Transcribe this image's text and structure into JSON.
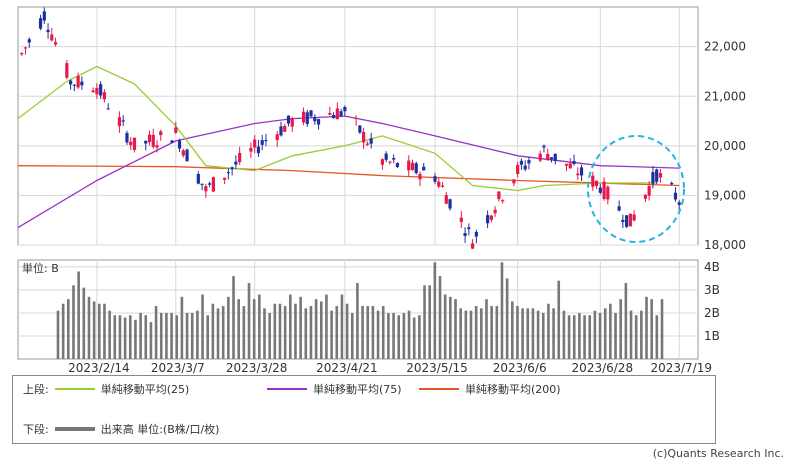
{
  "colors": {
    "up": "#e8194a",
    "down": "#1e2fa0",
    "ma25": "#99cc33",
    "ma75": "#9933cc",
    "ma200": "#e8552a",
    "volume": "#777777",
    "grid": "#d8d8d8",
    "highlight": "#27b4e0"
  },
  "price_axis": {
    "ticks": [
      "22,000",
      "21,000",
      "20,000",
      "19,000",
      "18,000"
    ]
  },
  "volume_axis": {
    "unit_label": "単位: B",
    "ticks": [
      "4B",
      "3B",
      "2B",
      "1B"
    ]
  },
  "x_labels": [
    "2023/2/14",
    "2023/3/7",
    "2023/3/28",
    "2023/4/21",
    "2023/5/15",
    "2023/6/6",
    "2023/6/28",
    "2023/7/19"
  ],
  "legend": {
    "upper_label": "上段:",
    "ma25": "単純移動平均(25)",
    "ma75": "単純移動平均(75)",
    "ma200": "単純移動平均(200)",
    "lower_label": "下段:",
    "volume": "出来高 単位:(B株/口/枚)"
  },
  "copyright": "(c)Quants Research Inc.",
  "chart_data": [
    {
      "type": "candlestick",
      "title": "",
      "x_range": [
        "2023/1/24",
        "2023/7/24"
      ],
      "ylim": [
        18000,
        22800
      ],
      "grid": true,
      "highlight": "dashed circle around the most recent candles",
      "key_points": [
        {
          "date": "2023/1/25",
          "close": 21850
        },
        {
          "date": "2023/1/31",
          "high": 22650
        },
        {
          "date": "2023/2/7",
          "close": 21300
        },
        {
          "date": "2023/2/14",
          "close": 21200
        },
        {
          "date": "2023/2/24",
          "close": 20000
        },
        {
          "date": "2023/3/7",
          "close": 20250
        },
        {
          "date": "2023/3/15",
          "close": 19100
        },
        {
          "date": "2023/3/28",
          "close": 19950
        },
        {
          "date": "2023/4/7",
          "close": 20500
        },
        {
          "date": "2023/4/21",
          "close": 20700
        },
        {
          "date": "2023/5/1",
          "close": 19700
        },
        {
          "date": "2023/5/15",
          "close": 19400
        },
        {
          "date": "2023/5/25",
          "low": 18100
        },
        {
          "date": "2023/6/6",
          "close": 19500
        },
        {
          "date": "2023/6/13",
          "close": 19900
        },
        {
          "date": "2023/6/28",
          "close": 19200
        },
        {
          "date": "2023/7/6",
          "close": 18450
        },
        {
          "date": "2023/7/13",
          "close": 19450
        },
        {
          "date": "2023/7/19",
          "close": 18900
        }
      ],
      "series": [
        {
          "name": "単純移動平均(25)",
          "x": [
            "2023/1/24",
            "2023/2/6",
            "2023/2/14",
            "2023/2/24",
            "2023/3/7",
            "2023/3/15",
            "2023/3/28",
            "2023/4/7",
            "2023/4/21",
            "2023/5/1",
            "2023/5/15",
            "2023/5/25",
            "2023/6/6",
            "2023/6/13",
            "2023/6/28",
            "2023/7/6",
            "2023/7/13"
          ],
          "values": [
            20550,
            21300,
            21600,
            21250,
            20400,
            19600,
            19500,
            19800,
            20000,
            20200,
            19850,
            19200,
            19100,
            19200,
            19250,
            19250,
            19250
          ]
        },
        {
          "name": "単純移動平均(75)",
          "x": [
            "2023/1/24",
            "2023/2/14",
            "2023/3/7",
            "2023/3/28",
            "2023/4/7",
            "2023/4/21",
            "2023/5/1",
            "2023/5/15",
            "2023/6/6",
            "2023/6/28",
            "2023/7/19"
          ],
          "values": [
            18350,
            19300,
            20100,
            20450,
            20550,
            20600,
            20450,
            20200,
            19800,
            19600,
            19550
          ]
        },
        {
          "name": "単純移動平均(200)",
          "x": [
            "2023/1/24",
            "2023/3/7",
            "2023/4/7",
            "2023/5/1",
            "2023/6/6",
            "2023/7/19"
          ],
          "values": [
            19600,
            19580,
            19500,
            19400,
            19300,
            19200
          ]
        }
      ]
    },
    {
      "type": "bar",
      "title": "",
      "ylabel": "単位: B",
      "ylim": [
        0,
        4.3
      ],
      "grid": true,
      "x_range": [
        "2023/1/24",
        "2023/7/24"
      ],
      "values": [
        2.1,
        2.4,
        2.6,
        3.2,
        3.8,
        3.1,
        2.7,
        2.5,
        2.4,
        2.4,
        2.1,
        1.9,
        1.9,
        1.8,
        1.9,
        1.7,
        2.0,
        1.9,
        1.6,
        2.3,
        2.0,
        2.0,
        2.0,
        1.9,
        2.7,
        2.0,
        2.0,
        2.1,
        2.8,
        1.9,
        2.4,
        2.2,
        2.3,
        2.7,
        3.6,
        2.6,
        2.3,
        3.3,
        2.6,
        2.8,
        2.2,
        2.0,
        2.4,
        2.4,
        2.3,
        2.8,
        2.4,
        2.7,
        2.2,
        2.3,
        2.6,
        2.5,
        2.8,
        2.1,
        2.3,
        2.8,
        2.4,
        2.0,
        3.3,
        2.3,
        2.3,
        2.3,
        2.1,
        2.3,
        2.0,
        2.0,
        1.9,
        2.0,
        2.1,
        1.8,
        1.9,
        3.2,
        3.2,
        4.2,
        3.6,
        2.8,
        2.7,
        2.6,
        2.2,
        2.1,
        2.1,
        2.3,
        2.2,
        2.6,
        2.3,
        2.3,
        4.2,
        3.5,
        2.5,
        2.3,
        2.2,
        2.2,
        2.2,
        2.1,
        2.0,
        2.4,
        2.2,
        3.4,
        2.1,
        1.9,
        1.9,
        2.0,
        1.9,
        1.9,
        2.1,
        2.0,
        2.2,
        2.4,
        2.0,
        2.6,
        3.3,
        2.1,
        1.9,
        2.1,
        2.7,
        2.6,
        1.9,
        2.6
      ]
    }
  ]
}
